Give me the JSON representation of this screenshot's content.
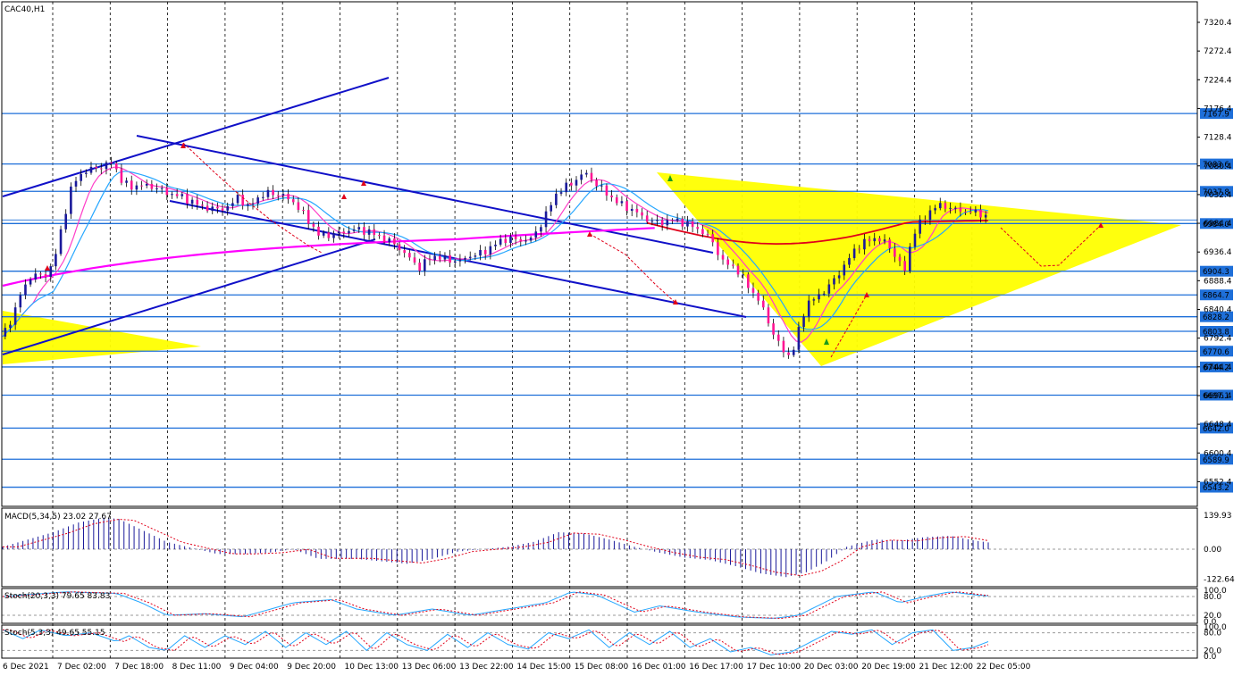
{
  "window": {
    "title": "CAC40,H1"
  },
  "colors": {
    "level_line": "#1e6fd9",
    "channel_line": "#1010c8",
    "triangle_fill": "#ffff00",
    "bull_body": "#1a1a9a",
    "bear_body": "#ff1493",
    "ma_fast": "#ff3ec8",
    "ma_mid": "#26a7ff",
    "ma_slow": "#ff00ff",
    "ma_red": "#e0001a",
    "macd_hist": "#1a1a9a",
    "macd_signal": "#e0001a",
    "arrow_red": "#e0001a"
  },
  "chart_data": [
    {
      "type": "candlestick",
      "title": "CAC40,H1",
      "ylim": [
        6490,
        7350
      ],
      "y_ticks": [
        7320.4,
        7272.4,
        7224.4,
        7176.4,
        7128.4,
        7080.4,
        7032.4,
        6984.4,
        6936.4,
        6888.4,
        6840.4,
        6792.4,
        6744.4,
        6696.4,
        6648.4,
        6600.4,
        6552.4
      ],
      "x_ticks": [
        "6 Dec 2021",
        "7 Dec 02:00",
        "7 Dec 18:00",
        "8 Dec 11:00",
        "9 Dec 04:00",
        "9 Dec 20:00",
        "10 Dec 13:00",
        "13 Dec 06:00",
        "13 Dec 22:00",
        "14 Dec 15:00",
        "15 Dec 08:00",
        "16 Dec 01:00",
        "16 Dec 17:00",
        "17 Dec 10:00",
        "20 Dec 03:00",
        "20 Dec 19:00",
        "21 Dec 12:00",
        "22 Dec 05:00"
      ],
      "levels": [
        7167.9,
        7083.6,
        7037.8,
        6984.0,
        6904.3,
        6864.7,
        6828.2,
        6803.8,
        6770.6,
        6744.2,
        6697.1,
        6642.0,
        6589.9,
        6543.2
      ],
      "grid": "dashed vertical",
      "close_path": [
        [
          0,
          6795
        ],
        [
          4,
          6830
        ],
        [
          8,
          6875
        ],
        [
          12,
          6900
        ],
        [
          16,
          6895
        ],
        [
          20,
          6915
        ],
        [
          24,
          6990
        ],
        [
          27,
          7040
        ],
        [
          30,
          7065
        ],
        [
          35,
          7075
        ],
        [
          40,
          7080
        ],
        [
          44,
          7088
        ],
        [
          46,
          7060
        ],
        [
          50,
          7045
        ],
        [
          55,
          7048
        ],
        [
          60,
          7045
        ],
        [
          65,
          7035
        ],
        [
          70,
          7030
        ],
        [
          75,
          7020
        ],
        [
          80,
          7010
        ],
        [
          85,
          7008
        ],
        [
          90,
          7012
        ],
        [
          93,
          7030
        ],
        [
          97,
          7010
        ],
        [
          100,
          7025
        ],
        [
          105,
          7035
        ],
        [
          110,
          7033
        ],
        [
          115,
          7020
        ],
        [
          120,
          6995
        ],
        [
          125,
          6965
        ],
        [
          130,
          6965
        ],
        [
          135,
          6970
        ],
        [
          140,
          6975
        ],
        [
          145,
          6970
        ],
        [
          150,
          6960
        ],
        [
          155,
          6950
        ],
        [
          160,
          6930
        ],
        [
          165,
          6910
        ],
        [
          170,
          6930
        ],
        [
          175,
          6925
        ],
        [
          180,
          6920
        ],
        [
          185,
          6930
        ],
        [
          190,
          6935
        ],
        [
          195,
          6950
        ],
        [
          200,
          6960
        ],
        [
          205,
          6955
        ],
        [
          210,
          6960
        ],
        [
          215,
          7000
        ],
        [
          220,
          7040
        ],
        [
          225,
          7050
        ],
        [
          230,
          7070
        ],
        [
          235,
          7050
        ],
        [
          240,
          7030
        ],
        [
          245,
          7015
        ],
        [
          250,
          7005
        ],
        [
          255,
          6990
        ],
        [
          260,
          6985
        ],
        [
          265,
          6990
        ],
        [
          270,
          6985
        ],
        [
          275,
          6975
        ],
        [
          280,
          6960
        ],
        [
          285,
          6920
        ],
        [
          290,
          6910
        ],
        [
          295,
          6880
        ],
        [
          300,
          6850
        ],
        [
          305,
          6800
        ],
        [
          308,
          6775
        ],
        [
          312,
          6760
        ],
        [
          315,
          6805
        ],
        [
          318,
          6850
        ],
        [
          322,
          6860
        ],
        [
          326,
          6875
        ],
        [
          330,
          6895
        ],
        [
          334,
          6920
        ],
        [
          338,
          6945
        ],
        [
          342,
          6955
        ],
        [
          346,
          6960
        ],
        [
          350,
          6950
        ],
        [
          354,
          6925
        ],
        [
          357,
          6905
        ],
        [
          360,
          6965
        ],
        [
          364,
          6990
        ],
        [
          368,
          7010
        ],
        [
          372,
          7015
        ],
        [
          376,
          7008
        ],
        [
          380,
          7005
        ],
        [
          384,
          7003
        ],
        [
          388,
          7000
        ],
        [
          390,
          6990
        ]
      ],
      "fib_pivot_arrows": "red dashed projections",
      "moving_averages": [
        "fast",
        "mid",
        "slow",
        "red"
      ]
    },
    {
      "type": "bar",
      "title": "MACD(5,34,5) 23.02 27.67",
      "series_label": "MACD(5,34,5)",
      "values_text": "23.02 27.67",
      "y_ticks": [
        139.93,
        0.0,
        -122.64
      ],
      "ylim": [
        -140,
        160
      ],
      "hist_path": [
        [
          0,
          10
        ],
        [
          10,
          40
        ],
        [
          20,
          70
        ],
        [
          30,
          110
        ],
        [
          40,
          130
        ],
        [
          46,
          125
        ],
        [
          55,
          80
        ],
        [
          65,
          30
        ],
        [
          75,
          5
        ],
        [
          85,
          -20
        ],
        [
          95,
          -20
        ],
        [
          105,
          -15
        ],
        [
          115,
          0
        ],
        [
          125,
          -40
        ],
        [
          140,
          -40
        ],
        [
          150,
          -50
        ],
        [
          160,
          -60
        ],
        [
          170,
          -40
        ],
        [
          180,
          -10
        ],
        [
          190,
          0
        ],
        [
          200,
          10
        ],
        [
          210,
          30
        ],
        [
          220,
          70
        ],
        [
          230,
          65
        ],
        [
          240,
          40
        ],
        [
          250,
          10
        ],
        [
          260,
          -15
        ],
        [
          270,
          -35
        ],
        [
          280,
          -45
        ],
        [
          290,
          -70
        ],
        [
          300,
          -100
        ],
        [
          310,
          -115
        ],
        [
          318,
          -95
        ],
        [
          326,
          -50
        ],
        [
          334,
          10
        ],
        [
          345,
          40
        ],
        [
          355,
          35
        ],
        [
          365,
          50
        ],
        [
          375,
          55
        ],
        [
          385,
          35
        ],
        [
          390,
          28
        ]
      ]
    },
    {
      "type": "line",
      "title": "Stoch(20,3,3) 79.65 83.83",
      "series_label": "Stoch(20,3,3)",
      "values_text": "79.65 83.83",
      "y_ticks": [
        100.0,
        80.0,
        20.0,
        0.0
      ],
      "ylim": [
        0,
        100
      ],
      "path": [
        [
          0,
          80
        ],
        [
          25,
          95
        ],
        [
          45,
          90
        ],
        [
          55,
          60
        ],
        [
          65,
          20
        ],
        [
          80,
          25
        ],
        [
          95,
          15
        ],
        [
          115,
          60
        ],
        [
          130,
          70
        ],
        [
          140,
          40
        ],
        [
          155,
          20
        ],
        [
          170,
          40
        ],
        [
          185,
          20
        ],
        [
          200,
          40
        ],
        [
          215,
          60
        ],
        [
          225,
          95
        ],
        [
          235,
          85
        ],
        [
          250,
          30
        ],
        [
          260,
          50
        ],
        [
          275,
          30
        ],
        [
          290,
          15
        ],
        [
          305,
          10
        ],
        [
          315,
          20
        ],
        [
          330,
          80
        ],
        [
          345,
          95
        ],
        [
          355,
          60
        ],
        [
          365,
          80
        ],
        [
          375,
          95
        ],
        [
          385,
          85
        ],
        [
          390,
          82
        ]
      ]
    },
    {
      "type": "line",
      "title": "Stoch(5,3,3) 49.65 55.15",
      "series_label": "Stoch(5,3,3)",
      "values_text": "49.65 55.15",
      "y_ticks": [
        100.0,
        80.0,
        20.0,
        0.0
      ],
      "ylim": [
        0,
        100
      ],
      "path": [
        [
          0,
          90
        ],
        [
          8,
          60
        ],
        [
          15,
          90
        ],
        [
          25,
          70
        ],
        [
          35,
          80
        ],
        [
          45,
          50
        ],
        [
          50,
          70
        ],
        [
          58,
          30
        ],
        [
          65,
          20
        ],
        [
          72,
          70
        ],
        [
          80,
          30
        ],
        [
          88,
          70
        ],
        [
          96,
          40
        ],
        [
          104,
          85
        ],
        [
          112,
          30
        ],
        [
          120,
          80
        ],
        [
          128,
          40
        ],
        [
          136,
          85
        ],
        [
          144,
          20
        ],
        [
          152,
          80
        ],
        [
          160,
          40
        ],
        [
          168,
          20
        ],
        [
          176,
          75
        ],
        [
          184,
          30
        ],
        [
          192,
          80
        ],
        [
          200,
          40
        ],
        [
          208,
          25
        ],
        [
          216,
          80
        ],
        [
          224,
          60
        ],
        [
          232,
          90
        ],
        [
          240,
          30
        ],
        [
          248,
          80
        ],
        [
          256,
          40
        ],
        [
          264,
          85
        ],
        [
          272,
          30
        ],
        [
          280,
          60
        ],
        [
          288,
          15
        ],
        [
          296,
          30
        ],
        [
          304,
          5
        ],
        [
          312,
          15
        ],
        [
          320,
          50
        ],
        [
          328,
          85
        ],
        [
          336,
          75
        ],
        [
          344,
          90
        ],
        [
          352,
          40
        ],
        [
          360,
          80
        ],
        [
          368,
          90
        ],
        [
          376,
          20
        ],
        [
          384,
          30
        ],
        [
          390,
          50
        ]
      ]
    }
  ]
}
